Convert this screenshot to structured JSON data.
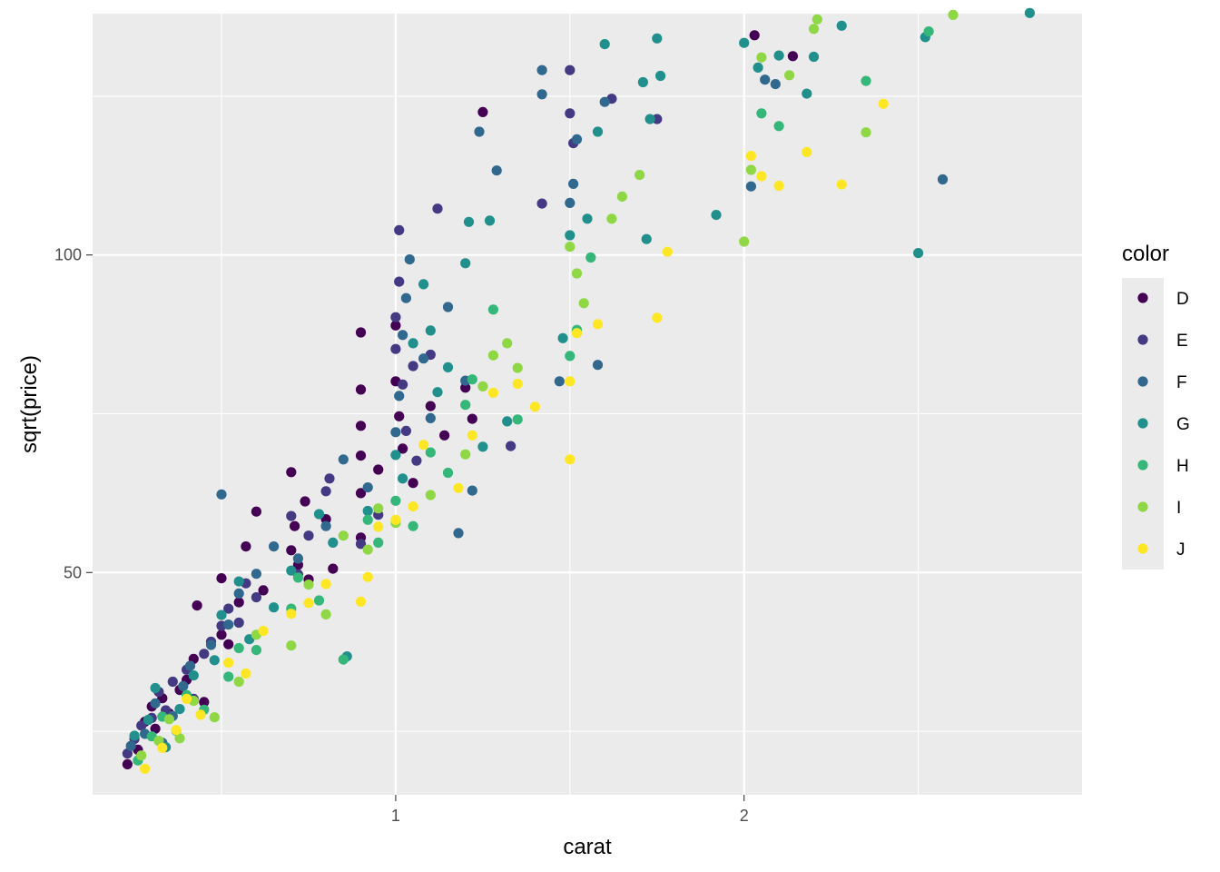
{
  "chart_data": {
    "type": "scatter",
    "title": "",
    "xlabel": "carat",
    "ylabel": "sqrt(price)",
    "xlim": [
      0.13,
      2.97
    ],
    "ylim": [
      15.0,
      138.0
    ],
    "x_ticks": [
      {
        "value": 1,
        "label": "1"
      },
      {
        "value": 2,
        "label": "2"
      }
    ],
    "x_minor_ticks": [
      0.5,
      1.5,
      2.5
    ],
    "y_ticks": [
      {
        "value": 50,
        "label": "50"
      },
      {
        "value": 100,
        "label": "100"
      }
    ],
    "y_minor_ticks": [
      25,
      75,
      125
    ],
    "grid": true,
    "legend": {
      "title": "color",
      "position": "right"
    },
    "series": [
      {
        "name": "D",
        "color": "#440154",
        "points": [
          [
            0.23,
            19.8
          ],
          [
            0.26,
            22.1
          ],
          [
            0.28,
            26.5
          ],
          [
            0.3,
            28.9
          ],
          [
            0.31,
            25.4
          ],
          [
            0.33,
            30.2
          ],
          [
            0.35,
            27.8
          ],
          [
            0.38,
            31.5
          ],
          [
            0.4,
            33.1
          ],
          [
            0.42,
            36.4
          ],
          [
            0.43,
            44.8
          ],
          [
            0.45,
            29.6
          ],
          [
            0.5,
            40.2
          ],
          [
            0.5,
            49.1
          ],
          [
            0.52,
            38.7
          ],
          [
            0.55,
            45.3
          ],
          [
            0.57,
            54.1
          ],
          [
            0.6,
            59.6
          ],
          [
            0.62,
            47.2
          ],
          [
            0.7,
            53.5
          ],
          [
            0.7,
            65.8
          ],
          [
            0.71,
            57.3
          ],
          [
            0.72,
            51.2
          ],
          [
            0.74,
            61.2
          ],
          [
            0.75,
            48.9
          ],
          [
            0.8,
            58.4
          ],
          [
            0.82,
            50.6
          ],
          [
            0.9,
            55.5
          ],
          [
            0.9,
            62.5
          ],
          [
            0.9,
            68.4
          ],
          [
            0.9,
            73.1
          ],
          [
            0.9,
            78.8
          ],
          [
            0.9,
            87.8
          ],
          [
            0.95,
            66.2
          ],
          [
            1.0,
            80.1
          ],
          [
            1.0,
            88.9
          ],
          [
            1.01,
            74.6
          ],
          [
            1.02,
            69.5
          ],
          [
            1.05,
            64.1
          ],
          [
            1.1,
            76.2
          ],
          [
            1.14,
            71.6
          ],
          [
            1.2,
            79.1
          ],
          [
            1.22,
            74.2
          ],
          [
            1.25,
            122.5
          ],
          [
            2.03,
            134.6
          ],
          [
            2.14,
            131.3
          ]
        ]
      },
      {
        "name": "E",
        "color": "#443983",
        "points": [
          [
            0.23,
            21.5
          ],
          [
            0.25,
            23.8
          ],
          [
            0.27,
            25.9
          ],
          [
            0.3,
            27.1
          ],
          [
            0.32,
            31.2
          ],
          [
            0.34,
            28.3
          ],
          [
            0.36,
            32.8
          ],
          [
            0.4,
            34.7
          ],
          [
            0.42,
            30.1
          ],
          [
            0.45,
            37.2
          ],
          [
            0.47,
            39.1
          ],
          [
            0.5,
            41.6
          ],
          [
            0.52,
            44.3
          ],
          [
            0.55,
            42.1
          ],
          [
            0.57,
            48.3
          ],
          [
            0.6,
            46.1
          ],
          [
            0.7,
            58.9
          ],
          [
            0.72,
            49.7
          ],
          [
            0.75,
            55.8
          ],
          [
            0.8,
            62.8
          ],
          [
            0.81,
            64.8
          ],
          [
            0.9,
            54.5
          ],
          [
            0.95,
            59.1
          ],
          [
            1.0,
            85.2
          ],
          [
            1.0,
            90.2
          ],
          [
            1.01,
            95.8
          ],
          [
            1.01,
            103.9
          ],
          [
            1.02,
            79.6
          ],
          [
            1.03,
            72.3
          ],
          [
            1.05,
            82.5
          ],
          [
            1.06,
            67.6
          ],
          [
            1.1,
            84.3
          ],
          [
            1.12,
            107.3
          ],
          [
            1.33,
            69.9
          ],
          [
            1.42,
            108.1
          ],
          [
            1.5,
            122.3
          ],
          [
            1.5,
            129.1
          ],
          [
            1.51,
            117.6
          ],
          [
            1.62,
            124.6
          ],
          [
            1.75,
            121.4
          ]
        ]
      },
      {
        "name": "F",
        "color": "#31688E",
        "points": [
          [
            0.24,
            22.7
          ],
          [
            0.28,
            24.6
          ],
          [
            0.31,
            29.4
          ],
          [
            0.33,
            23.2
          ],
          [
            0.36,
            27.4
          ],
          [
            0.39,
            32.1
          ],
          [
            0.41,
            35.3
          ],
          [
            0.47,
            38.6
          ],
          [
            0.5,
            62.3
          ],
          [
            0.52,
            41.8
          ],
          [
            0.55,
            46.7
          ],
          [
            0.6,
            49.8
          ],
          [
            0.65,
            54.1
          ],
          [
            0.72,
            52.2
          ],
          [
            0.8,
            57.3
          ],
          [
            0.85,
            67.8
          ],
          [
            0.92,
            63.4
          ],
          [
            1.0,
            72.1
          ],
          [
            1.01,
            77.8
          ],
          [
            1.02,
            87.4
          ],
          [
            1.03,
            93.2
          ],
          [
            1.04,
            99.3
          ],
          [
            1.08,
            83.7
          ],
          [
            1.1,
            74.3
          ],
          [
            1.15,
            91.8
          ],
          [
            1.18,
            56.2
          ],
          [
            1.2,
            80.2
          ],
          [
            1.22,
            62.9
          ],
          [
            1.24,
            119.4
          ],
          [
            1.29,
            113.3
          ],
          [
            1.42,
            129.1
          ],
          [
            1.42,
            125.3
          ],
          [
            1.47,
            80.1
          ],
          [
            1.5,
            108.2
          ],
          [
            1.51,
            111.2
          ],
          [
            1.52,
            118.2
          ],
          [
            1.58,
            82.7
          ],
          [
            1.6,
            124.1
          ],
          [
            2.02,
            110.8
          ],
          [
            2.06,
            127.6
          ],
          [
            2.09,
            126.9
          ],
          [
            2.57,
            111.9
          ]
        ]
      },
      {
        "name": "G",
        "color": "#21908C",
        "points": [
          [
            0.25,
            24.3
          ],
          [
            0.29,
            26.8
          ],
          [
            0.31,
            31.8
          ],
          [
            0.34,
            22.5
          ],
          [
            0.38,
            28.5
          ],
          [
            0.42,
            33.8
          ],
          [
            0.48,
            36.2
          ],
          [
            0.5,
            43.3
          ],
          [
            0.55,
            48.6
          ],
          [
            0.58,
            39.5
          ],
          [
            0.65,
            44.5
          ],
          [
            0.7,
            50.3
          ],
          [
            0.78,
            59.2
          ],
          [
            0.82,
            54.7
          ],
          [
            0.86,
            36.8
          ],
          [
            0.92,
            59.7
          ],
          [
            1.0,
            68.5
          ],
          [
            1.02,
            64.8
          ],
          [
            1.05,
            86.1
          ],
          [
            1.08,
            95.4
          ],
          [
            1.1,
            88.1
          ],
          [
            1.12,
            78.4
          ],
          [
            1.15,
            82.3
          ],
          [
            1.2,
            98.7
          ],
          [
            1.21,
            105.2
          ],
          [
            1.25,
            69.8
          ],
          [
            1.27,
            105.4
          ],
          [
            1.32,
            73.8
          ],
          [
            1.48,
            86.9
          ],
          [
            1.5,
            103.1
          ],
          [
            1.55,
            105.7
          ],
          [
            1.58,
            119.4
          ],
          [
            1.6,
            133.2
          ],
          [
            1.71,
            127.2
          ],
          [
            1.72,
            102.5
          ],
          [
            1.73,
            121.4
          ],
          [
            1.75,
            134.1
          ],
          [
            1.76,
            128.2
          ],
          [
            1.92,
            106.3
          ],
          [
            2.0,
            133.4
          ],
          [
            2.04,
            129.5
          ],
          [
            2.1,
            131.4
          ],
          [
            2.2,
            131.2
          ],
          [
            2.18,
            125.4
          ],
          [
            2.28,
            136.1
          ],
          [
            2.5,
            100.3
          ],
          [
            2.52,
            134.3
          ],
          [
            2.82,
            138.1
          ]
        ]
      },
      {
        "name": "H",
        "color": "#35B779",
        "points": [
          [
            0.26,
            20.4
          ],
          [
            0.3,
            24.2
          ],
          [
            0.33,
            27.3
          ],
          [
            0.37,
            25.1
          ],
          [
            0.4,
            30.7
          ],
          [
            0.45,
            28.4
          ],
          [
            0.52,
            33.6
          ],
          [
            0.55,
            38.1
          ],
          [
            0.6,
            37.8
          ],
          [
            0.7,
            44.3
          ],
          [
            0.72,
            49.2
          ],
          [
            0.78,
            45.6
          ],
          [
            0.85,
            36.3
          ],
          [
            0.92,
            58.3
          ],
          [
            0.95,
            54.7
          ],
          [
            1.0,
            61.3
          ],
          [
            1.05,
            57.3
          ],
          [
            1.1,
            68.9
          ],
          [
            1.15,
            65.7
          ],
          [
            1.2,
            76.4
          ],
          [
            1.22,
            80.4
          ],
          [
            1.28,
            91.4
          ],
          [
            1.35,
            74.1
          ],
          [
            1.5,
            84.1
          ],
          [
            1.52,
            88.2
          ],
          [
            1.56,
            99.6
          ],
          [
            2.05,
            122.3
          ],
          [
            2.1,
            120.3
          ],
          [
            2.35,
            127.4
          ],
          [
            2.53,
            135.2
          ]
        ]
      },
      {
        "name": "I",
        "color": "#8FD744",
        "points": [
          [
            0.27,
            21.2
          ],
          [
            0.32,
            23.5
          ],
          [
            0.35,
            26.9
          ],
          [
            0.38,
            23.9
          ],
          [
            0.42,
            29.8
          ],
          [
            0.48,
            27.2
          ],
          [
            0.55,
            32.8
          ],
          [
            0.6,
            40.2
          ],
          [
            0.7,
            38.5
          ],
          [
            0.75,
            48.1
          ],
          [
            0.8,
            43.4
          ],
          [
            0.85,
            55.8
          ],
          [
            0.92,
            53.6
          ],
          [
            0.95,
            60.1
          ],
          [
            1.0,
            57.8
          ],
          [
            1.1,
            62.2
          ],
          [
            1.2,
            68.6
          ],
          [
            1.25,
            79.3
          ],
          [
            1.28,
            84.2
          ],
          [
            1.32,
            86.1
          ],
          [
            1.35,
            82.2
          ],
          [
            1.5,
            101.3
          ],
          [
            1.52,
            97.1
          ],
          [
            1.54,
            92.4
          ],
          [
            1.62,
            105.7
          ],
          [
            1.65,
            109.2
          ],
          [
            1.7,
            112.6
          ],
          [
            2.0,
            102.1
          ],
          [
            2.02,
            113.4
          ],
          [
            2.05,
            131.1
          ],
          [
            2.13,
            128.3
          ],
          [
            2.2,
            135.6
          ],
          [
            2.21,
            137.1
          ],
          [
            2.35,
            119.3
          ],
          [
            2.6,
            137.8
          ]
        ]
      },
      {
        "name": "J",
        "color": "#FDE725",
        "points": [
          [
            0.28,
            19.1
          ],
          [
            0.33,
            22.4
          ],
          [
            0.37,
            25.2
          ],
          [
            0.4,
            30.1
          ],
          [
            0.44,
            27.6
          ],
          [
            0.52,
            35.8
          ],
          [
            0.57,
            34.1
          ],
          [
            0.62,
            40.8
          ],
          [
            0.7,
            43.5
          ],
          [
            0.75,
            45.2
          ],
          [
            0.8,
            48.2
          ],
          [
            0.9,
            45.4
          ],
          [
            0.92,
            49.3
          ],
          [
            0.95,
            57.2
          ],
          [
            1.0,
            58.3
          ],
          [
            1.05,
            60.4
          ],
          [
            1.08,
            70.1
          ],
          [
            1.18,
            63.3
          ],
          [
            1.22,
            71.6
          ],
          [
            1.28,
            78.3
          ],
          [
            1.35,
            79.7
          ],
          [
            1.4,
            76.1
          ],
          [
            1.5,
            67.8
          ],
          [
            1.5,
            80.1
          ],
          [
            1.52,
            87.7
          ],
          [
            1.58,
            89.1
          ],
          [
            1.75,
            90.1
          ],
          [
            1.78,
            100.5
          ],
          [
            2.02,
            115.6
          ],
          [
            2.05,
            112.4
          ],
          [
            2.1,
            110.9
          ],
          [
            2.18,
            116.2
          ],
          [
            2.28,
            111.1
          ],
          [
            2.4,
            123.8
          ]
        ]
      }
    ]
  }
}
